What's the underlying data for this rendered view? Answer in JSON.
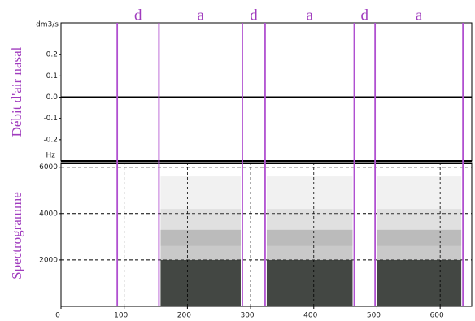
{
  "segment_labels": [
    "d",
    "a",
    "d",
    "a",
    "d",
    "a"
  ],
  "boundaries": [
    89,
    155,
    287,
    323,
    464,
    497,
    636
  ],
  "boundary_color": "#b050d0",
  "chart_data": [
    {
      "type": "line",
      "ylabel": "Débit d'air nasal",
      "yunit": "dm3/s",
      "x": [
        0,
        650
      ],
      "values": [
        0,
        0
      ],
      "color": "#000000",
      "xlim": [
        0,
        650
      ],
      "ylim": [
        -0.3,
        0.35
      ],
      "yticks": [
        0.2,
        0.1,
        {
          "value": 0,
          "label": "0.0"
        },
        -0.1,
        -0.2
      ]
    },
    {
      "type": "spectrogram",
      "ylabel": "Spectrogramme",
      "yunit": "Hz",
      "xlim": [
        0,
        650
      ],
      "ylim": [
        0,
        6200
      ],
      "yticks": [
        2000,
        4000,
        6000
      ],
      "xticks": [
        0,
        100,
        200,
        300,
        400,
        500,
        600
      ],
      "grid": true
    }
  ]
}
